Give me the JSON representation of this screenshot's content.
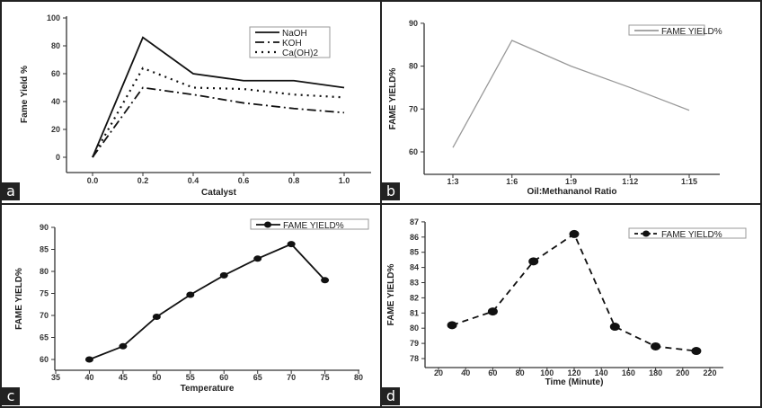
{
  "figure": {
    "panels": [
      "a",
      "b",
      "c",
      "d"
    ]
  },
  "chart_data": [
    {
      "panel_label": "a",
      "type": "line",
      "title": "",
      "xlabel": "Catalyst",
      "ylabel": "Fame Yield %",
      "x": [
        0.0,
        0.2,
        0.4,
        0.6,
        0.8,
        1.0
      ],
      "xticks": [
        "0.0",
        "0.2",
        "0.4",
        "0.6",
        "0.8",
        "1.0"
      ],
      "yticks": [
        "0",
        "20",
        "40",
        "60",
        "80",
        "100"
      ],
      "xlim": [
        -0.1,
        1.1
      ],
      "ylim": [
        -10,
        100
      ],
      "grid": false,
      "legend_position": "top-right",
      "series": [
        {
          "name": "NaOH",
          "style": "solid",
          "values": [
            0,
            86,
            60,
            55,
            55,
            50
          ]
        },
        {
          "name": "KOH",
          "style": "dash-dot",
          "values": [
            0,
            50,
            45,
            39,
            35,
            32
          ]
        },
        {
          "name": "Ca(OH)2",
          "style": "dotted",
          "values": [
            0,
            64,
            50,
            49,
            45,
            43
          ]
        }
      ]
    },
    {
      "panel_label": "b",
      "type": "line",
      "title": "",
      "xlabel": "Oil:Methananol Ratio",
      "ylabel": "FAME YIELD%",
      "categories": [
        "1:3",
        "1:6",
        "1:9",
        "1:12",
        "1:15"
      ],
      "yticks": [
        "60",
        "70",
        "80",
        "90"
      ],
      "ylim": [
        55,
        90
      ],
      "grid": false,
      "legend_position": "top-right",
      "series": [
        {
          "name": "FAME YIELD%",
          "style": "solid-gray",
          "values": [
            61,
            86,
            80,
            75,
            69.7
          ]
        }
      ]
    },
    {
      "panel_label": "c",
      "type": "line",
      "title": "",
      "xlabel": "Temperature",
      "ylabel": "FAME YIELD%",
      "x": [
        40,
        45,
        50,
        55,
        60,
        65,
        70,
        75
      ],
      "xticks": [
        "35",
        "40",
        "45",
        "50",
        "55",
        "60",
        "65",
        "70",
        "75",
        "80"
      ],
      "yticks": [
        "60",
        "65",
        "70",
        "75",
        "80",
        "85",
        "90"
      ],
      "xlim": [
        35,
        80
      ],
      "ylim": [
        57.5,
        90
      ],
      "grid": false,
      "legend_position": "top-right",
      "series": [
        {
          "name": "FAME YIELD%",
          "style": "solid-markers",
          "values": [
            60,
            63,
            69.7,
            74.7,
            79.1,
            82.9,
            86.2,
            78
          ]
        }
      ]
    },
    {
      "panel_label": "d",
      "type": "line",
      "title": "",
      "xlabel": "Time (Minute)",
      "ylabel": "FAME YIELD%",
      "x": [
        30,
        60,
        90,
        120,
        150,
        180,
        210
      ],
      "xticks": [
        "20",
        "40",
        "60",
        "80",
        "100",
        "120",
        "140",
        "160",
        "180",
        "200",
        "220"
      ],
      "yticks": [
        "78",
        "79",
        "80",
        "81",
        "82",
        "83",
        "84",
        "85",
        "86",
        "87"
      ],
      "xlim": [
        10,
        230
      ],
      "ylim": [
        77.4,
        87
      ],
      "grid": false,
      "legend_position": "top-right",
      "series": [
        {
          "name": "FAME YIELD%",
          "style": "dashed-markers",
          "values": [
            80.2,
            81.1,
            84.4,
            86.2,
            80.1,
            78.8,
            78.5
          ]
        }
      ]
    }
  ]
}
